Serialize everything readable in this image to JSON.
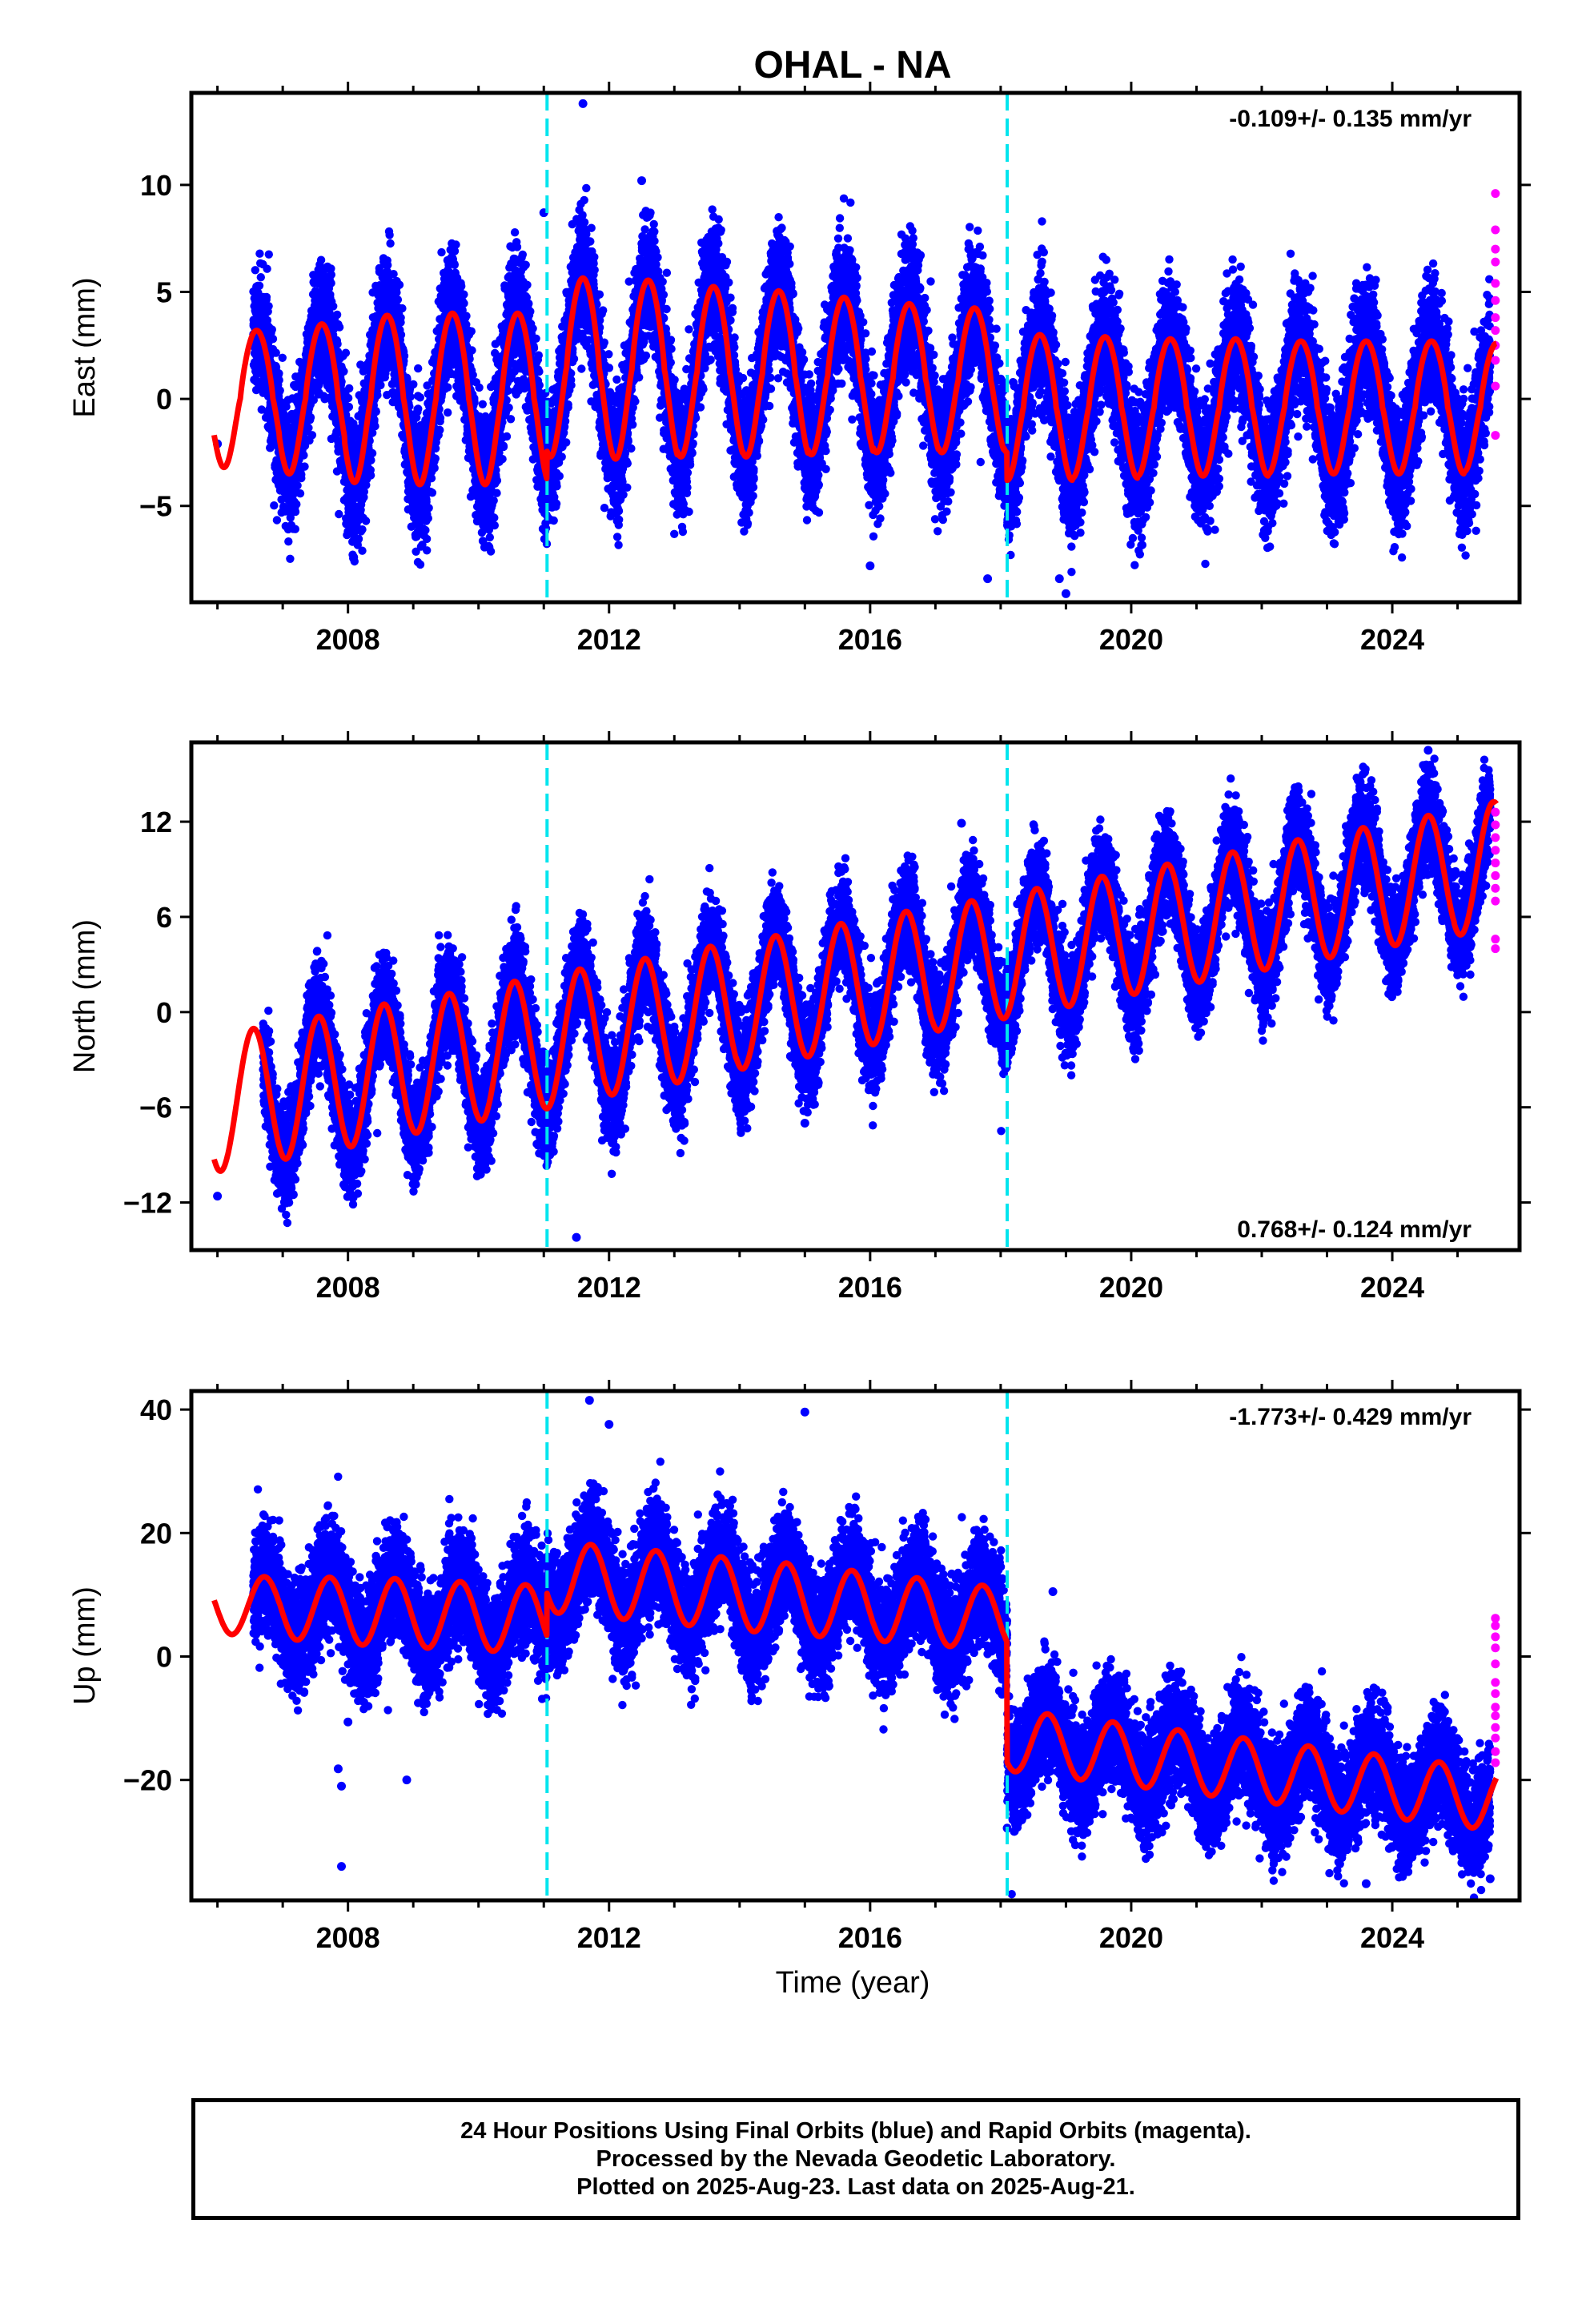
{
  "title": "OHAL - NA",
  "xlabel": "Time (year)",
  "colors": {
    "final_orbits": "#0000ff",
    "rapid_orbits": "#ff00ff",
    "model": "#ff0000",
    "offset_lines": "#00e5ee",
    "frame": "#000000"
  },
  "caption": {
    "line1": "24 Hour Positions Using Final Orbits (blue) and Rapid Orbits (magenta).",
    "line2": "Processed by the Nevada Geodetic Laboratory.",
    "line3": "Plotted on 2025-Aug-23. Last data on 2025-Aug-21."
  },
  "chart_data": [
    {
      "type": "scatter",
      "component": "east",
      "ylabel": "East (mm)",
      "rate_label": "-0.109+/- 0.135 mm/yr",
      "rate_position": "top-right",
      "xlim": [
        2005.6,
        2025.95
      ],
      "ylim": [
        -9.5,
        14.3
      ],
      "xticks": [
        2008,
        2012,
        2016,
        2020,
        2024
      ],
      "yticks": [
        -5,
        0,
        5,
        10
      ],
      "offset_epochs": [
        2011.05,
        2018.1
      ],
      "data_start": 2006.55,
      "data_end": 2025.5,
      "rapid_start": 2025.48,
      "model": {
        "start": 2005.95,
        "end": 2025.6,
        "segments": [
          {
            "t0": 2005.95,
            "t1": 2011.05,
            "a": 0.0,
            "b": 0.0,
            "amp": [
              3.2,
              3.5,
              3.9,
              4.0,
              4.0,
              4.0
            ],
            "shape": 1.2
          },
          {
            "t0": 2011.05,
            "t1": 2018.1,
            "a": 1.5,
            "b": -0.1,
            "amp": [
              4.2,
              4.2,
              4.0,
              3.9,
              3.7,
              3.5,
              3.4,
              3.3
            ],
            "shape": 1.2
          },
          {
            "t0": 2018.1,
            "t1": 2025.6,
            "a": -0.4,
            "b": 0.0,
            "amp": [
              3.4,
              3.3,
              3.2,
              3.2,
              3.1,
              3.1,
              3.1,
              3.0
            ],
            "shape": 1.2
          }
        ],
        "peak_phase": 0.6
      },
      "scatter_spread": 1.4,
      "outliers": [
        {
          "x": 2006.0,
          "y": -2.1
        },
        {
          "x": 2011.6,
          "y": 13.8
        },
        {
          "x": 2012.5,
          "y": 10.2
        },
        {
          "x": 2011.0,
          "y": 8.7
        },
        {
          "x": 2016.0,
          "y": -7.8
        },
        {
          "x": 2017.8,
          "y": -8.4
        },
        {
          "x": 2019.0,
          "y": -9.1
        },
        {
          "x": 2018.9,
          "y": -8.4
        },
        {
          "x": 2009.0,
          "y": -5.3
        }
      ],
      "rapid_points": [
        {
          "x": 2025.58,
          "y": 9.6
        },
        {
          "x": 2025.58,
          "y": 7.9
        },
        {
          "x": 2025.58,
          "y": 7.0
        },
        {
          "x": 2025.58,
          "y": 6.4
        },
        {
          "x": 2025.58,
          "y": 5.4
        },
        {
          "x": 2025.58,
          "y": 4.6
        },
        {
          "x": 2025.58,
          "y": 3.8
        },
        {
          "x": 2025.58,
          "y": 3.2
        },
        {
          "x": 2025.58,
          "y": 2.5
        },
        {
          "x": 2025.58,
          "y": 1.8
        },
        {
          "x": 2025.58,
          "y": 0.6
        },
        {
          "x": 2025.58,
          "y": -1.7
        }
      ]
    },
    {
      "type": "scatter",
      "component": "north",
      "ylabel": "North (mm)",
      "rate_label": "0.768+/- 0.124 mm/yr",
      "rate_position": "bottom-right",
      "xlim": [
        2005.6,
        2025.95
      ],
      "ylim": [
        -15,
        17
      ],
      "xticks": [
        2008,
        2012,
        2016,
        2020,
        2024
      ],
      "yticks": [
        -12,
        -6,
        0,
        6,
        12
      ],
      "offset_epochs": [
        2011.05,
        2018.1
      ],
      "data_start": 2006.7,
      "data_end": 2025.5,
      "rapid_start": 2025.48,
      "model": {
        "start": 2005.95,
        "end": 2025.6,
        "segments": [
          {
            "t0": 2005.95,
            "t1": 2025.6,
            "a": -5.8,
            "b": 0.768,
            "amp": [
              4.3,
              4.3,
              4.3,
              4.2,
              4.2,
              4.2,
              4.1,
              4.1,
              4.0,
              4.0,
              4.0,
              3.9,
              3.9,
              3.9,
              3.9,
              3.9,
              3.9,
              3.9,
              3.9,
              4.0
            ],
            "shape": 1.0
          }
        ],
        "peak_phase": 0.55
      },
      "scatter_spread": 1.5,
      "outliers": [
        {
          "x": 2006.0,
          "y": -11.6
        },
        {
          "x": 2011.5,
          "y": -14.2
        },
        {
          "x": 2024.55,
          "y": 16.5
        },
        {
          "x": 2017.4,
          "y": 11.9
        },
        {
          "x": 2015.0,
          "y": -7.0
        }
      ],
      "rapid_points": [
        {
          "x": 2025.58,
          "y": 12.6
        },
        {
          "x": 2025.58,
          "y": 11.8
        },
        {
          "x": 2025.58,
          "y": 11.0
        },
        {
          "x": 2025.58,
          "y": 10.2
        },
        {
          "x": 2025.58,
          "y": 9.4
        },
        {
          "x": 2025.58,
          "y": 8.6
        },
        {
          "x": 2025.58,
          "y": 7.8
        },
        {
          "x": 2025.58,
          "y": 7.0
        },
        {
          "x": 2025.58,
          "y": 4.6
        },
        {
          "x": 2025.58,
          "y": 4.0
        }
      ]
    },
    {
      "type": "scatter",
      "component": "up",
      "ylabel": "Up (mm)",
      "rate_label": "-1.773+/- 0.429 mm/yr",
      "rate_position": "top-right",
      "xlim": [
        2005.6,
        2025.95
      ],
      "ylim": [
        -39.5,
        43
      ],
      "xticks": [
        2008,
        2012,
        2016,
        2020,
        2024
      ],
      "yticks": [
        -20,
        0,
        20,
        40
      ],
      "offset_epochs": [
        2011.05,
        2018.1
      ],
      "data_start": 2006.55,
      "data_end": 2025.5,
      "rapid_start": 2025.48,
      "model": {
        "start": 2005.95,
        "end": 2025.6,
        "segments": [
          {
            "t0": 2005.95,
            "t1": 2011.05,
            "a": 8.5,
            "b": -0.5,
            "amp": [
              4.8,
              5.2,
              5.5,
              5.5,
              5.5,
              5.5
            ],
            "shape": 1.0
          },
          {
            "t0": 2011.05,
            "t1": 2018.1,
            "a": 13.0,
            "b": -1.0,
            "amp": [
              5.8,
              5.8,
              5.8,
              5.8,
              5.6,
              5.4,
              5.2,
              5.0
            ],
            "shape": 1.0
          },
          {
            "t0": 2018.1,
            "t1": 2025.6,
            "a": -13.5,
            "b": -1.3,
            "amp": [
              5.0,
              5.0,
              5.0,
              5.0,
              5.0,
              5.0,
              5.0,
              5.0
            ],
            "shape": 1.0
          }
        ],
        "peak_phase": 0.72
      },
      "scatter_spread": 4.2,
      "outliers": [
        {
          "x": 2007.9,
          "y": -34.0
        },
        {
          "x": 2007.9,
          "y": -21.0
        },
        {
          "x": 2007.85,
          "y": -18.2
        },
        {
          "x": 2008.9,
          "y": -20.0
        },
        {
          "x": 2008.0,
          "y": -10.6
        },
        {
          "x": 2011.7,
          "y": 41.5
        },
        {
          "x": 2012.0,
          "y": 37.6
        },
        {
          "x": 2015.0,
          "y": 39.6
        },
        {
          "x": 2018.1,
          "y": -27.8
        },
        {
          "x": 2018.8,
          "y": 10.5
        },
        {
          "x": 2023.6,
          "y": -36.8
        },
        {
          "x": 2025.5,
          "y": -36.0
        }
      ],
      "rapid_points": [
        {
          "x": 2025.58,
          "y": 6.2
        },
        {
          "x": 2025.58,
          "y": 5.0
        },
        {
          "x": 2025.58,
          "y": 3.2
        },
        {
          "x": 2025.58,
          "y": 1.4
        },
        {
          "x": 2025.58,
          "y": -1.2
        },
        {
          "x": 2025.58,
          "y": -4.2
        },
        {
          "x": 2025.58,
          "y": -6.0
        },
        {
          "x": 2025.58,
          "y": -8.2
        },
        {
          "x": 2025.58,
          "y": -9.6
        },
        {
          "x": 2025.58,
          "y": -11.5
        },
        {
          "x": 2025.58,
          "y": -13.2
        },
        {
          "x": 2025.58,
          "y": -15.4
        },
        {
          "x": 2025.58,
          "y": -17.2
        }
      ]
    }
  ]
}
